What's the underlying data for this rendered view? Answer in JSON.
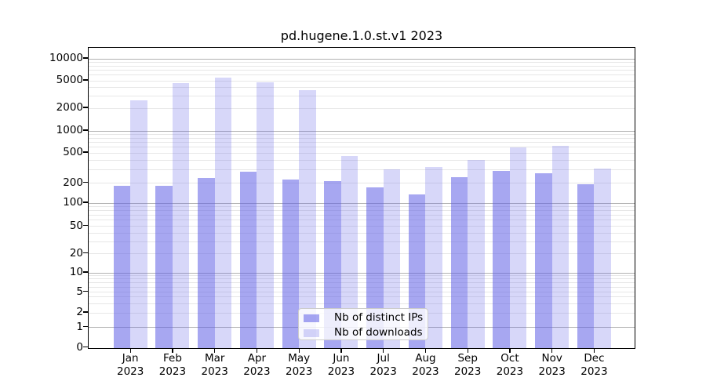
{
  "chart_data": {
    "type": "bar",
    "title": "pd.hugene.1.0.st.v1 2023",
    "categories": [
      "Jan 2023",
      "Feb 2023",
      "Mar 2023",
      "Apr 2023",
      "May 2023",
      "Jun 2023",
      "Jul 2023",
      "Aug 2023",
      "Sep 2023",
      "Oct 2023",
      "Nov 2023",
      "Dec 2023"
    ],
    "series": [
      {
        "name": "Nb of distinct IPs",
        "values": [
          180,
          182,
          235,
          285,
          221,
          211,
          174,
          135,
          237,
          289,
          267,
          190
        ],
        "color": "rgba(95,95,230,0.55)",
        "color_hex": "#a8a8f2"
      },
      {
        "name": "Nb of downloads",
        "values": [
          2600,
          4650,
          5500,
          4700,
          3700,
          460,
          300,
          325,
          400,
          600,
          630,
          310
        ],
        "color": "rgba(95,95,230,0.25)",
        "color_hex": "#d8d8f7"
      }
    ],
    "yscale": "symlog",
    "ylim": [
      0,
      14000
    ],
    "grid": "both",
    "legend_position": "lower center inside"
  },
  "y_axis": {
    "tick_labels": [
      "10000",
      "5000",
      "2000",
      "1000",
      "500",
      "200",
      "100",
      "50",
      "20",
      "10",
      "5",
      "2",
      "1",
      "0"
    ]
  },
  "x_axis": {
    "months": [
      "Jan",
      "Feb",
      "Mar",
      "Apr",
      "May",
      "Jun",
      "Jul",
      "Aug",
      "Sep",
      "Oct",
      "Nov",
      "Dec"
    ],
    "year": "2023"
  },
  "legend": {
    "items": [
      {
        "label": "Nb of distinct IPs"
      },
      {
        "label": "Nb of downloads"
      }
    ]
  },
  "colors": {
    "major_grid": "#b2b2b2",
    "minor_grid": "#e7e7e7",
    "axis": "#000000"
  }
}
